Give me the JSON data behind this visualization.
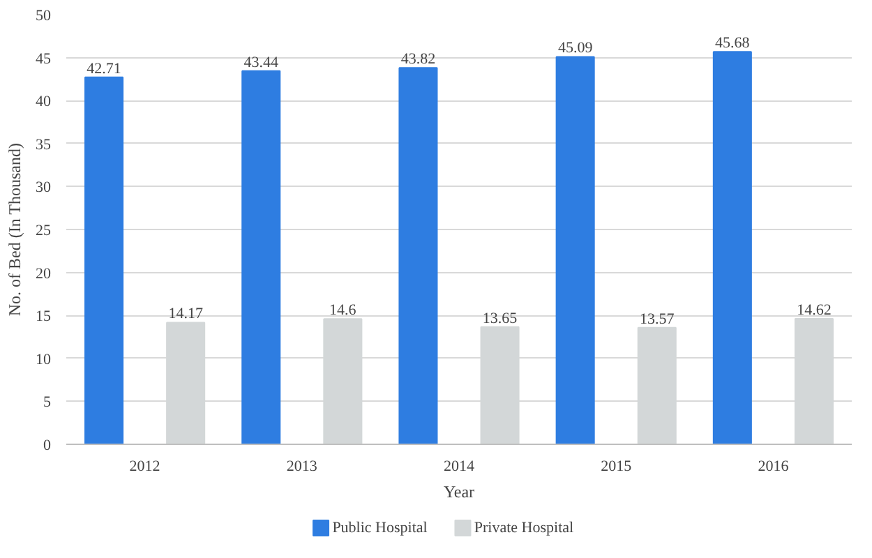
{
  "chart_data": {
    "type": "bar",
    "xlabel": "Year",
    "ylabel": "No. of Bed (In Thousand)",
    "categories": [
      "2012",
      "2013",
      "2014",
      "2015",
      "2016"
    ],
    "series": [
      {
        "name": "Public Hospital",
        "color": "#2e7de1",
        "values": [
          42.71,
          43.44,
          43.82,
          45.09,
          45.68
        ]
      },
      {
        "name": "Private Hospital",
        "color": "#d3d7d8",
        "values": [
          14.17,
          14.6,
          13.65,
          13.57,
          14.62
        ]
      }
    ],
    "ylim": [
      0,
      50
    ],
    "yticks": [
      0,
      5,
      10,
      15,
      20,
      25,
      30,
      35,
      40,
      45,
      50
    ],
    "grid": "y",
    "legend": "bottom",
    "data_labels": true
  }
}
